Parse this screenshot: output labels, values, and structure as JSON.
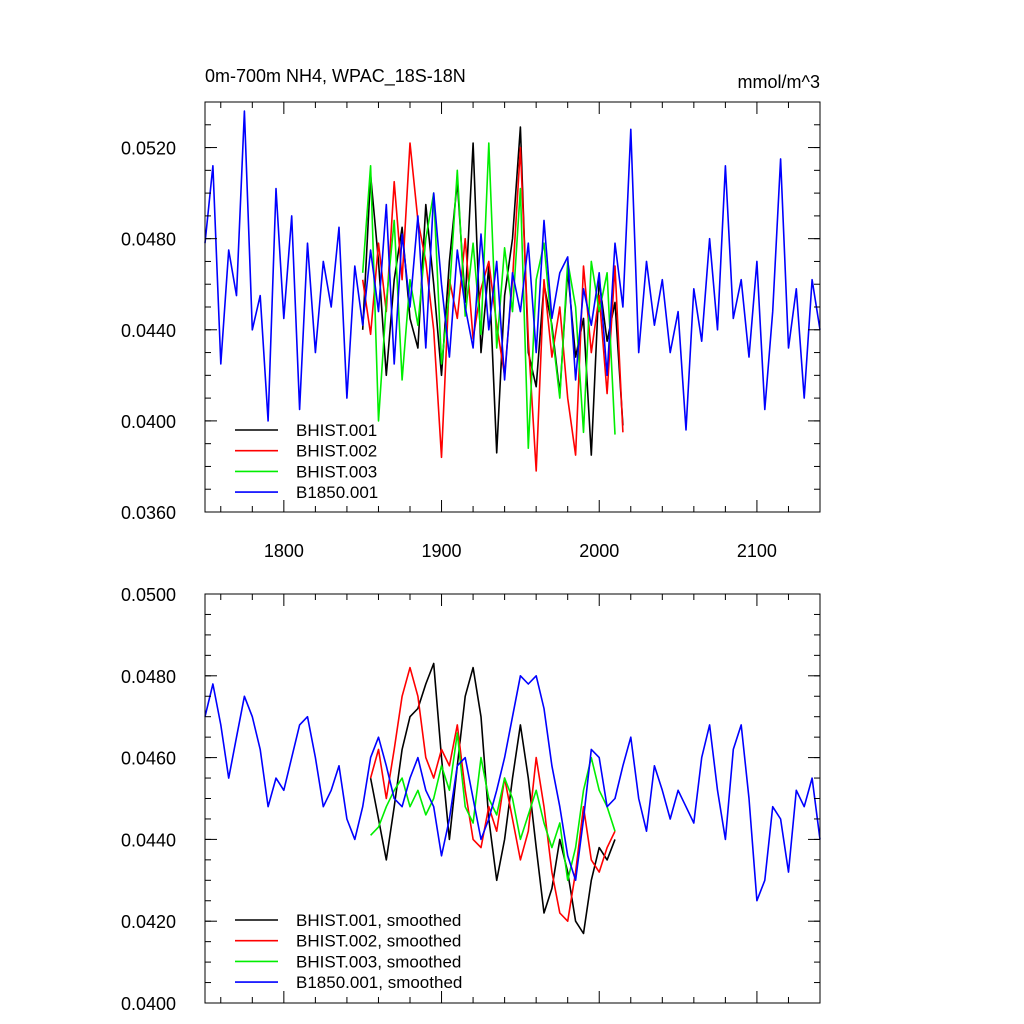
{
  "chart_data": [
    {
      "type": "line",
      "id": "raw",
      "title_left": "0m-700m NH4, WPAC_18S-18N",
      "title_right": "mmol/m^3",
      "xlabel": "",
      "ylabel": "",
      "xlim": [
        1750,
        2140
      ],
      "ylim": [
        0.036,
        0.054
      ],
      "x_ticks": [
        1800,
        1900,
        2000,
        2100
      ],
      "x_tick_labels": [
        "1800",
        "1900",
        "2000",
        "2100"
      ],
      "y_ticks": [
        0.036,
        0.04,
        0.044,
        0.048,
        0.052
      ],
      "y_tick_labels": [
        "0.0360",
        "0.0400",
        "0.0440",
        "0.0480",
        "0.0520"
      ],
      "legend_position": "bottom-left",
      "series": [
        {
          "name": "BHIST.001",
          "color": "#000000",
          "x": [
            1850,
            1855,
            1860,
            1865,
            1870,
            1875,
            1880,
            1885,
            1890,
            1895,
            1900,
            1905,
            1910,
            1915,
            1920,
            1925,
            1930,
            1935,
            1940,
            1945,
            1950,
            1955,
            1960,
            1965,
            1970,
            1975,
            1980,
            1985,
            1990,
            1995,
            2000,
            2005,
            2010,
            2015
          ],
          "values": [
            0.044,
            0.0508,
            0.047,
            0.042,
            0.0462,
            0.0485,
            0.0445,
            0.0432,
            0.0495,
            0.046,
            0.042,
            0.047,
            0.0505,
            0.0452,
            0.0522,
            0.043,
            0.0468,
            0.0386,
            0.0455,
            0.048,
            0.0529,
            0.043,
            0.0415,
            0.046,
            0.0442,
            0.0412,
            0.0466,
            0.0428,
            0.0445,
            0.0385,
            0.0462,
            0.0435,
            0.0452,
            0.0398
          ]
        },
        {
          "name": "BHIST.002",
          "color": "#ff0000",
          "x": [
            1850,
            1855,
            1860,
            1865,
            1870,
            1875,
            1880,
            1885,
            1890,
            1895,
            1900,
            1905,
            1910,
            1915,
            1920,
            1925,
            1930,
            1935,
            1940,
            1945,
            1950,
            1955,
            1960,
            1965,
            1970,
            1975,
            1980,
            1985,
            1990,
            1995,
            2000,
            2005,
            2010,
            2015
          ],
          "values": [
            0.0462,
            0.0438,
            0.0478,
            0.0448,
            0.0505,
            0.0462,
            0.0522,
            0.0488,
            0.047,
            0.044,
            0.0384,
            0.0462,
            0.0445,
            0.048,
            0.0436,
            0.0458,
            0.047,
            0.0442,
            0.042,
            0.0462,
            0.052,
            0.0436,
            0.0378,
            0.0462,
            0.0428,
            0.045,
            0.041,
            0.0385,
            0.0468,
            0.043,
            0.0455,
            0.0412,
            0.0468,
            0.0395
          ]
        },
        {
          "name": "BHIST.003",
          "color": "#00ee00",
          "x": [
            1850,
            1855,
            1860,
            1865,
            1870,
            1875,
            1880,
            1885,
            1890,
            1895,
            1900,
            1905,
            1910,
            1915,
            1920,
            1925,
            1930,
            1935,
            1940,
            1945,
            1950,
            1955,
            1960,
            1965,
            1970,
            1975,
            1980,
            1985,
            1990,
            1995,
            2000,
            2005,
            2010
          ],
          "values": [
            0.0465,
            0.0512,
            0.04,
            0.0452,
            0.0488,
            0.0418,
            0.0462,
            0.0442,
            0.048,
            0.05,
            0.0425,
            0.0456,
            0.051,
            0.0446,
            0.0478,
            0.0438,
            0.0522,
            0.0432,
            0.0476,
            0.0448,
            0.0502,
            0.0388,
            0.0462,
            0.0478,
            0.044,
            0.041,
            0.047,
            0.045,
            0.0395,
            0.047,
            0.0448,
            0.0465,
            0.0394
          ]
        },
        {
          "name": "B1850.001",
          "color": "#0000ff",
          "x": [
            1750,
            1755,
            1760,
            1765,
            1770,
            1775,
            1780,
            1785,
            1790,
            1795,
            1800,
            1805,
            1810,
            1815,
            1820,
            1825,
            1830,
            1835,
            1840,
            1845,
            1850,
            1855,
            1860,
            1865,
            1870,
            1875,
            1880,
            1885,
            1890,
            1895,
            1900,
            1905,
            1910,
            1915,
            1920,
            1925,
            1930,
            1935,
            1940,
            1945,
            1950,
            1955,
            1960,
            1965,
            1970,
            1975,
            1980,
            1985,
            1990,
            1995,
            2000,
            2005,
            2010,
            2015,
            2020,
            2025,
            2030,
            2035,
            2040,
            2045,
            2050,
            2055,
            2060,
            2065,
            2070,
            2075,
            2080,
            2085,
            2090,
            2095,
            2100,
            2105,
            2110,
            2115,
            2120,
            2125,
            2130,
            2135,
            2140
          ],
          "values": [
            0.0478,
            0.0512,
            0.0425,
            0.0475,
            0.0455,
            0.0536,
            0.044,
            0.0455,
            0.04,
            0.0502,
            0.0445,
            0.049,
            0.0405,
            0.0478,
            0.043,
            0.047,
            0.045,
            0.0485,
            0.041,
            0.0468,
            0.0442,
            0.0475,
            0.0448,
            0.0495,
            0.0425,
            0.0482,
            0.045,
            0.049,
            0.0432,
            0.05,
            0.046,
            0.0428,
            0.0475,
            0.045,
            0.0432,
            0.0482,
            0.044,
            0.047,
            0.0418,
            0.0465,
            0.0448,
            0.0478,
            0.043,
            0.0488,
            0.0445,
            0.0465,
            0.0472,
            0.0418,
            0.0458,
            0.0442,
            0.0465,
            0.042,
            0.0478,
            0.045,
            0.0528,
            0.043,
            0.047,
            0.0442,
            0.0462,
            0.043,
            0.0448,
            0.0396,
            0.0458,
            0.0435,
            0.048,
            0.044,
            0.0512,
            0.0445,
            0.0462,
            0.0428,
            0.047,
            0.0405,
            0.0448,
            0.0515,
            0.0432,
            0.0458,
            0.041,
            0.0462,
            0.044
          ]
        }
      ]
    },
    {
      "type": "line",
      "id": "smoothed",
      "title_left": "",
      "title_right": "",
      "xlabel": "",
      "ylabel": "",
      "xlim": [
        1750,
        2140
      ],
      "ylim": [
        0.04,
        0.05
      ],
      "x_ticks": [
        1800,
        1900,
        2000,
        2100
      ],
      "x_tick_labels": [],
      "y_ticks": [
        0.04,
        0.042,
        0.044,
        0.046,
        0.048,
        0.05
      ],
      "y_tick_labels": [
        "0.0400",
        "0.0420",
        "0.0440",
        "0.0460",
        "0.0480",
        "0.0500"
      ],
      "legend_position": "bottom-left",
      "series": [
        {
          "name": "BHIST.001, smoothed",
          "color": "#000000",
          "x": [
            1855,
            1860,
            1865,
            1870,
            1875,
            1880,
            1885,
            1890,
            1895,
            1900,
            1905,
            1910,
            1915,
            1920,
            1925,
            1930,
            1935,
            1940,
            1945,
            1950,
            1955,
            1960,
            1965,
            1970,
            1975,
            1980,
            1985,
            1990,
            1995,
            2000,
            2005,
            2010
          ],
          "values": [
            0.0455,
            0.0445,
            0.0435,
            0.0448,
            0.0462,
            0.047,
            0.0472,
            0.0478,
            0.0483,
            0.046,
            0.044,
            0.0458,
            0.0475,
            0.0482,
            0.047,
            0.0445,
            0.043,
            0.044,
            0.0455,
            0.0468,
            0.0455,
            0.0438,
            0.0422,
            0.0428,
            0.044,
            0.0432,
            0.042,
            0.0417,
            0.043,
            0.0438,
            0.0435,
            0.044
          ]
        },
        {
          "name": "BHIST.002, smoothed",
          "color": "#ff0000",
          "x": [
            1855,
            1860,
            1865,
            1870,
            1875,
            1880,
            1885,
            1890,
            1895,
            1900,
            1905,
            1910,
            1915,
            1920,
            1925,
            1930,
            1935,
            1940,
            1945,
            1950,
            1955,
            1960,
            1965,
            1970,
            1975,
            1980,
            1985,
            1990,
            1995,
            2000,
            2005,
            2010
          ],
          "values": [
            0.0455,
            0.0462,
            0.045,
            0.0462,
            0.0475,
            0.0482,
            0.0475,
            0.046,
            0.0455,
            0.0462,
            0.0458,
            0.0468,
            0.0452,
            0.044,
            0.0438,
            0.0448,
            0.0442,
            0.0455,
            0.0445,
            0.0435,
            0.0442,
            0.046,
            0.0448,
            0.0432,
            0.0422,
            0.042,
            0.0432,
            0.0448,
            0.0435,
            0.0432,
            0.0438,
            0.0442
          ]
        },
        {
          "name": "BHIST.003, smoothed",
          "color": "#00ee00",
          "x": [
            1855,
            1860,
            1865,
            1870,
            1875,
            1880,
            1885,
            1890,
            1895,
            1900,
            1905,
            1910,
            1915,
            1920,
            1925,
            1930,
            1935,
            1940,
            1945,
            1950,
            1955,
            1960,
            1965,
            1970,
            1975,
            1980,
            1985,
            1990,
            1995,
            2000,
            2005,
            2010
          ],
          "values": [
            0.0441,
            0.0443,
            0.0448,
            0.0452,
            0.0455,
            0.0448,
            0.0452,
            0.0446,
            0.045,
            0.0458,
            0.0452,
            0.0466,
            0.0448,
            0.0444,
            0.046,
            0.045,
            0.0446,
            0.0455,
            0.045,
            0.044,
            0.0446,
            0.0452,
            0.0444,
            0.0438,
            0.0444,
            0.043,
            0.0438,
            0.0452,
            0.046,
            0.0452,
            0.0448,
            0.0442
          ]
        },
        {
          "name": "B1850.001, smoothed",
          "color": "#0000ff",
          "x": [
            1750,
            1755,
            1760,
            1765,
            1770,
            1775,
            1780,
            1785,
            1790,
            1795,
            1800,
            1805,
            1810,
            1815,
            1820,
            1825,
            1830,
            1835,
            1840,
            1845,
            1850,
            1855,
            1860,
            1865,
            1870,
            1875,
            1880,
            1885,
            1890,
            1895,
            1900,
            1905,
            1910,
            1915,
            1920,
            1925,
            1930,
            1935,
            1940,
            1945,
            1950,
            1955,
            1960,
            1965,
            1970,
            1975,
            1980,
            1985,
            1990,
            1995,
            2000,
            2005,
            2010,
            2015,
            2020,
            2025,
            2030,
            2035,
            2040,
            2045,
            2050,
            2055,
            2060,
            2065,
            2070,
            2075,
            2080,
            2085,
            2090,
            2095,
            2100,
            2105,
            2110,
            2115,
            2120,
            2125,
            2130,
            2135,
            2140
          ],
          "values": [
            0.047,
            0.0478,
            0.0468,
            0.0455,
            0.0465,
            0.0475,
            0.047,
            0.0462,
            0.0448,
            0.0455,
            0.0452,
            0.046,
            0.0468,
            0.047,
            0.046,
            0.0448,
            0.0452,
            0.0458,
            0.0445,
            0.044,
            0.0448,
            0.046,
            0.0465,
            0.0458,
            0.045,
            0.0448,
            0.0455,
            0.046,
            0.0452,
            0.0448,
            0.0436,
            0.0445,
            0.0458,
            0.046,
            0.045,
            0.044,
            0.0445,
            0.0452,
            0.046,
            0.047,
            0.048,
            0.0478,
            0.048,
            0.0472,
            0.0458,
            0.0448,
            0.0436,
            0.043,
            0.0445,
            0.0462,
            0.046,
            0.0448,
            0.045,
            0.0458,
            0.0465,
            0.045,
            0.0442,
            0.0458,
            0.0452,
            0.0445,
            0.0452,
            0.0448,
            0.0444,
            0.046,
            0.0468,
            0.0452,
            0.044,
            0.0462,
            0.0468,
            0.045,
            0.0425,
            0.043,
            0.0448,
            0.0445,
            0.0432,
            0.0452,
            0.0448,
            0.0455,
            0.044
          ]
        }
      ]
    }
  ]
}
